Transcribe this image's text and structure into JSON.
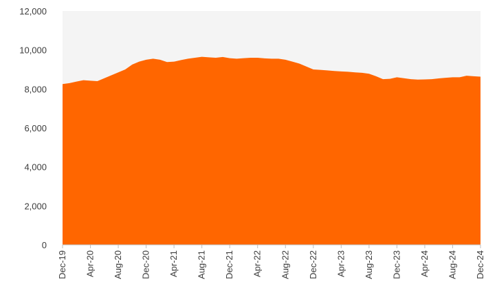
{
  "chart_data": {
    "type": "area",
    "title": "",
    "xlabel": "",
    "ylabel": "",
    "ylim": [
      0,
      12000
    ],
    "yticks": [
      0,
      2000,
      4000,
      6000,
      8000,
      10000,
      12000
    ],
    "ytick_labels": [
      "0",
      "2,000",
      "4,000",
      "6,000",
      "8,000",
      "10,000",
      "12,000"
    ],
    "xtick_labels": [
      "Dec-19",
      "Apr-20",
      "Aug-20",
      "Dec-20",
      "Apr-21",
      "Aug-21",
      "Dec-21",
      "Apr-22",
      "Aug-22",
      "Dec-22",
      "Apr-23",
      "Aug-23",
      "Dec-23",
      "Apr-24",
      "Aug-24",
      "Dec-24"
    ],
    "grid": false,
    "plot_background": "#f4f4f4",
    "fill_color": "#ff6600",
    "series": [
      {
        "x": [
          "Dec-19",
          "Jan-20",
          "Feb-20",
          "Mar-20",
          "Apr-20",
          "May-20",
          "Jun-20",
          "Jul-20",
          "Aug-20",
          "Sep-20",
          "Oct-20",
          "Nov-20",
          "Dec-20",
          "Jan-21",
          "Feb-21",
          "Mar-21",
          "Apr-21",
          "May-21",
          "Jun-21",
          "Jul-21",
          "Aug-21",
          "Sep-21",
          "Oct-21",
          "Nov-21",
          "Dec-21",
          "Jan-22",
          "Feb-22",
          "Mar-22",
          "Apr-22",
          "May-22",
          "Jun-22",
          "Jul-22",
          "Aug-22",
          "Sep-22",
          "Oct-22",
          "Nov-22",
          "Dec-22",
          "Jan-23",
          "Feb-23",
          "Mar-23",
          "Apr-23",
          "May-23",
          "Jun-23",
          "Jul-23",
          "Aug-23",
          "Sep-23",
          "Oct-23",
          "Nov-23",
          "Dec-23",
          "Jan-24",
          "Feb-24",
          "Mar-24",
          "Apr-24",
          "May-24",
          "Jun-24",
          "Jul-24",
          "Aug-24",
          "Sep-24",
          "Oct-24",
          "Nov-24",
          "Dec-24"
        ],
        "values": [
          8250,
          8300,
          8380,
          8450,
          8420,
          8400,
          8550,
          8700,
          8850,
          9000,
          9250,
          9400,
          9500,
          9550,
          9500,
          9380,
          9400,
          9480,
          9550,
          9600,
          9650,
          9620,
          9600,
          9640,
          9580,
          9550,
          9580,
          9600,
          9600,
          9570,
          9550,
          9550,
          9500,
          9400,
          9300,
          9150,
          9000,
          8980,
          8950,
          8920,
          8900,
          8880,
          8850,
          8830,
          8780,
          8650,
          8500,
          8520,
          8600,
          8550,
          8500,
          8480,
          8490,
          8500,
          8540,
          8570,
          8600,
          8600,
          8680,
          8650,
          8630
        ]
      }
    ]
  }
}
